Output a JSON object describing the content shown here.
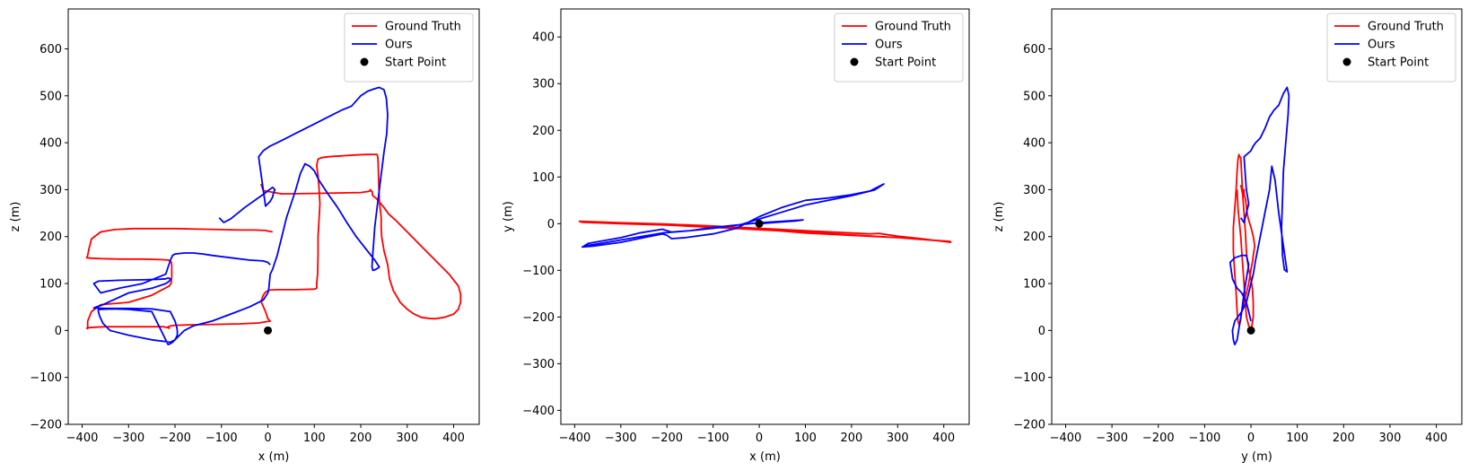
{
  "chart_data": [
    {
      "type": "line",
      "xlabel": "x (m)",
      "ylabel": "z (m)",
      "xlim": [
        -430,
        455
      ],
      "ylim": [
        -200,
        685
      ],
      "xticks": [
        -400,
        -300,
        -200,
        -100,
        0,
        100,
        200,
        300,
        400
      ],
      "yticks": [
        -200,
        -100,
        0,
        100,
        200,
        300,
        400,
        500,
        600
      ],
      "tick_labels_x": [
        "−400",
        "−300",
        "−200",
        "−100",
        "0",
        "100",
        "200",
        "300",
        "400"
      ],
      "tick_labels_y": [
        "−200",
        "−100",
        "0",
        "100",
        "200",
        "300",
        "400",
        "500",
        "600"
      ],
      "legend_position": "top-right",
      "grid": false,
      "series": [
        {
          "name": "Ground Truth",
          "color": "#ff0000",
          "x": [
            -15,
            -10,
            30,
            100,
            200,
            215,
            222,
            220,
            220,
            225,
            225,
            235,
            250,
            260,
            275,
            300,
            330,
            360,
            390,
            410,
            415,
            415,
            410,
            400,
            380,
            360,
            345,
            330,
            315,
            300,
            285,
            270,
            262,
            258,
            250,
            245,
            244,
            244,
            243,
            241,
            240,
            239,
            238,
            237,
            236,
            235,
            230,
            225,
            210,
            190,
            175,
            158,
            140,
            128,
            115,
            108,
            105,
            108,
            110,
            112,
            110,
            108,
            108,
            107,
            105,
            105,
            100,
            60,
            20,
            3,
            -5,
            -10,
            -15,
            -5,
            0,
            5,
            -20,
            -60,
            -120,
            -170,
            -200,
            -208,
            -212,
            -215,
            -215,
            -215,
            -213,
            -212,
            -215,
            -225,
            -260,
            -300,
            -350,
            -370,
            -385,
            -390,
            -388,
            -388,
            -380,
            -360,
            -300,
            -250,
            -212,
            -208,
            -207,
            -207,
            -207,
            -208,
            -210,
            -215,
            -230,
            -270,
            -320,
            -360,
            -380,
            -390,
            -388,
            -385,
            -380,
            -360,
            -330,
            -290,
            -250,
            -200,
            -150,
            -100,
            -60,
            -30,
            -5,
            0,
            5,
            10
          ],
          "y": [
            312,
            298,
            291,
            292,
            294,
            296,
            298,
            299,
            300,
            295,
            288,
            280,
            262,
            248,
            235,
            210,
            180,
            150,
            120,
            95,
            78,
            60,
            45,
            35,
            28,
            25,
            26,
            28,
            35,
            45,
            60,
            85,
            110,
            140,
            170,
            200,
            220,
            240,
            250,
            265,
            280,
            305,
            340,
            365,
            372,
            375,
            375,
            375,
            375,
            374,
            373,
            372,
            371,
            370,
            368,
            365,
            352,
            330,
            305,
            270,
            235,
            200,
            160,
            120,
            100,
            90,
            88,
            87,
            87,
            86,
            82,
            75,
            62,
            40,
            25,
            20,
            16,
            14,
            13,
            12,
            11,
            10,
            9,
            8,
            7,
            6,
            5,
            5,
            6,
            8,
            8,
            8,
            8,
            7,
            6,
            5,
            4,
            20,
            40,
            55,
            60,
            75,
            95,
            102,
            115,
            125,
            140,
            145,
            148,
            150,
            151,
            152,
            152,
            153,
            154,
            155,
            160,
            175,
            195,
            210,
            215,
            217,
            217,
            217,
            216,
            215,
            214,
            214,
            213,
            212,
            211,
            210
          ]
        },
        {
          "name": "Ours",
          "color": "#0000ff",
          "x": [
            -105,
            -95,
            -80,
            -50,
            -10,
            10,
            15,
            12,
            10,
            5,
            -5,
            -20,
            -10,
            5,
            20,
            40,
            60,
            80,
            100,
            130,
            160,
            180,
            200,
            215,
            230,
            240,
            250,
            255,
            258,
            256,
            250,
            245,
            240,
            235,
            230,
            228,
            226,
            225,
            224,
            226,
            232,
            240,
            230,
            210,
            190,
            170,
            150,
            130,
            110,
            100,
            90,
            80,
            70,
            60,
            50,
            40,
            30,
            20,
            10,
            5,
            3,
            2,
            0,
            -10,
            -40,
            -80,
            -120,
            -160,
            -180,
            -190,
            -200,
            -205,
            -210,
            -215,
            -250,
            -300,
            -340,
            -360,
            -365,
            -365,
            -362,
            -355,
            -340,
            -300,
            -250,
            -210,
            -200,
            -195,
            -195,
            -197,
            -200,
            -205,
            -210,
            -250,
            -300,
            -350,
            -370,
            -375,
            -370,
            -355,
            -300,
            -250,
            -220,
            -212,
            -210,
            -215,
            -220,
            -235,
            -270,
            -320,
            -365,
            -375,
            -360,
            -320,
            -270,
            -220,
            -210,
            -205,
            -200,
            -180,
            -160,
            -140,
            -120,
            -80,
            -40,
            -10,
            0,
            5
          ],
          "y": [
            240,
            230,
            238,
            262,
            290,
            305,
            300,
            292,
            284,
            275,
            265,
            370,
            383,
            393,
            400,
            410,
            420,
            430,
            440,
            455,
            470,
            478,
            500,
            510,
            515,
            518,
            513,
            495,
            460,
            420,
            380,
            340,
            300,
            260,
            220,
            190,
            165,
            150,
            135,
            128,
            130,
            135,
            150,
            175,
            200,
            230,
            262,
            290,
            320,
            340,
            350,
            355,
            335,
            300,
            270,
            240,
            200,
            160,
            130,
            120,
            100,
            90,
            80,
            65,
            50,
            35,
            20,
            10,
            0,
            -10,
            -20,
            -25,
            -28,
            -30,
            40,
            45,
            46,
            45,
            44,
            40,
            30,
            15,
            0,
            -10,
            -20,
            -25,
            -20,
            -10,
            0,
            10,
            20,
            30,
            40,
            46,
            47,
            47,
            48,
            48,
            50,
            55,
            80,
            90,
            100,
            105,
            110,
            112,
            110,
            109,
            108,
            107,
            105,
            100,
            80,
            90,
            100,
            120,
            150,
            160,
            163,
            165,
            165,
            163,
            160,
            155,
            150,
            148,
            145,
            140
          ]
        },
        {
          "name": "Start Point",
          "color": "#000000",
          "x": [
            0
          ],
          "y": [
            0
          ]
        }
      ]
    },
    {
      "type": "line",
      "xlabel": "x (m)",
      "ylabel": "y (m)",
      "xlim": [
        -430,
        455
      ],
      "ylim": [
        -430,
        460
      ],
      "xticks": [
        -400,
        -300,
        -200,
        -100,
        0,
        100,
        200,
        300,
        400
      ],
      "yticks": [
        -400,
        -300,
        -200,
        -100,
        0,
        100,
        200,
        300,
        400
      ],
      "tick_labels_x": [
        "−400",
        "−300",
        "−200",
        "−100",
        "0",
        "100",
        "200",
        "300",
        "400"
      ],
      "tick_labels_y": [
        "−400",
        "−300",
        "−200",
        "−100",
        "0",
        "100",
        "200",
        "300",
        "400"
      ],
      "legend_position": "top-right",
      "grid": false,
      "series": [
        {
          "name": "Ground Truth",
          "color": "#ff0000",
          "x": [
            -390,
            -300,
            -200,
            -100,
            0,
            100,
            200,
            240,
            260,
            300,
            350,
            415,
            410,
            300,
            200,
            100,
            0,
            -100,
            -200,
            -300,
            -390,
            -385,
            -300,
            -200,
            -100,
            0,
            100,
            200,
            300,
            415
          ],
          "y": [
            4,
            2,
            -1,
            -5,
            -10,
            -15,
            -20,
            -22,
            -21,
            -27,
            -32,
            -40,
            -38,
            -30,
            -25,
            -20,
            -12,
            -6,
            -2,
            2,
            5,
            3,
            0,
            -3,
            -8,
            -13,
            -18,
            -24,
            -30,
            -38
          ]
        },
        {
          "name": "Ours",
          "color": "#0000ff",
          "x": [
            -385,
            -360,
            -300,
            -250,
            -210,
            -200,
            -190,
            -160,
            -100,
            -50,
            0,
            50,
            100,
            150,
            200,
            240,
            260,
            270,
            250,
            200,
            150,
            100,
            50,
            0,
            -40,
            -100,
            -150,
            -190,
            -200,
            -210,
            -260,
            -300,
            -370,
            -380,
            -330,
            -270,
            -210,
            -150,
            -100,
            -50,
            0,
            50,
            95,
            80,
            40,
            0
          ],
          "y": [
            -50,
            -48,
            -40,
            -30,
            -22,
            -25,
            -32,
            -30,
            -22,
            -10,
            15,
            35,
            50,
            55,
            62,
            70,
            80,
            85,
            72,
            60,
            50,
            40,
            25,
            10,
            -2,
            -10,
            -15,
            -18,
            -15,
            -12,
            -20,
            -30,
            -42,
            -48,
            -40,
            -30,
            -20,
            -15,
            -8,
            -3,
            2,
            5,
            8,
            6,
            3,
            0
          ]
        },
        {
          "name": "Start Point",
          "color": "#000000",
          "x": [
            0
          ],
          "y": [
            0
          ]
        }
      ]
    },
    {
      "type": "line",
      "xlabel": "y (m)",
      "ylabel": "z (m)",
      "xlim": [
        -430,
        455
      ],
      "ylim": [
        -200,
        685
      ],
      "xticks": [
        -400,
        -300,
        -200,
        -100,
        0,
        100,
        200,
        300,
        400
      ],
      "yticks": [
        -200,
        -100,
        0,
        100,
        200,
        300,
        400,
        500,
        600
      ],
      "tick_labels_x": [
        "−400",
        "−300",
        "−200",
        "−100",
        "0",
        "100",
        "200",
        "300",
        "400"
      ],
      "tick_labels_y": [
        "−200",
        "−100",
        "0",
        "100",
        "200",
        "300",
        "400",
        "500",
        "600"
      ],
      "legend_position": "top-right",
      "grid": false,
      "series": [
        {
          "name": "Ground Truth",
          "color": "#ff0000",
          "x": [
            -22,
            -20,
            -18,
            -15,
            -15,
            -12,
            -10,
            -8,
            -5,
            0,
            5,
            8,
            5,
            3,
            0,
            -5,
            -10,
            -15,
            -20,
            -22,
            -25,
            -28,
            -30,
            -32,
            -35,
            -38,
            -38,
            -35,
            -32,
            -30,
            -28,
            -26,
            -25,
            -24,
            -22,
            -20,
            -18,
            -15,
            -12,
            -10,
            -8,
            -5,
            0,
            3,
            5,
            5,
            2,
            0,
            -5,
            -10,
            -12,
            -15,
            -18,
            -20,
            -22,
            -25,
            -28,
            -30
          ],
          "y": [
            310,
            300,
            290,
            300,
            290,
            280,
            265,
            248,
            235,
            220,
            200,
            180,
            160,
            145,
            130,
            100,
            80,
            60,
            40,
            25,
            10,
            20,
            40,
            80,
            120,
            170,
            220,
            260,
            300,
            340,
            365,
            375,
            372,
            370,
            368,
            330,
            290,
            250,
            210,
            170,
            150,
            130,
            110,
            90,
            60,
            30,
            10,
            5,
            10,
            30,
            60,
            100,
            140,
            170,
            200,
            230,
            260,
            300
          ]
        },
        {
          "name": "Ours",
          "color": "#0000ff",
          "x": [
            -22,
            -15,
            -10,
            -5,
            -10,
            -15,
            0,
            5,
            10,
            20,
            30,
            40,
            50,
            60,
            70,
            78,
            82,
            80,
            75,
            70,
            68,
            66,
            68,
            72,
            78,
            70,
            60,
            52,
            45,
            40,
            30,
            20,
            10,
            5,
            0,
            -5,
            -10,
            -20,
            -35,
            -40,
            -38,
            -35,
            -30,
            -25,
            -20,
            -15,
            -10,
            -5,
            -10,
            -20,
            -35,
            -45,
            -40,
            -30,
            -20,
            -10,
            -5,
            0
          ],
          "y": [
            240,
            230,
            250,
            270,
            300,
            370,
            383,
            393,
            400,
            410,
            430,
            455,
            470,
            480,
            505,
            518,
            500,
            460,
            400,
            340,
            280,
            220,
            160,
            130,
            125,
            180,
            250,
            320,
            350,
            300,
            250,
            200,
            150,
            120,
            100,
            80,
            60,
            40,
            20,
            0,
            -20,
            -30,
            -20,
            10,
            40,
            80,
            110,
            140,
            160,
            160,
            155,
            145,
            110,
            90,
            80,
            60,
            40,
            20
          ]
        },
        {
          "name": "Start Point",
          "color": "#000000",
          "x": [
            0
          ],
          "y": [
            0
          ]
        }
      ]
    }
  ]
}
